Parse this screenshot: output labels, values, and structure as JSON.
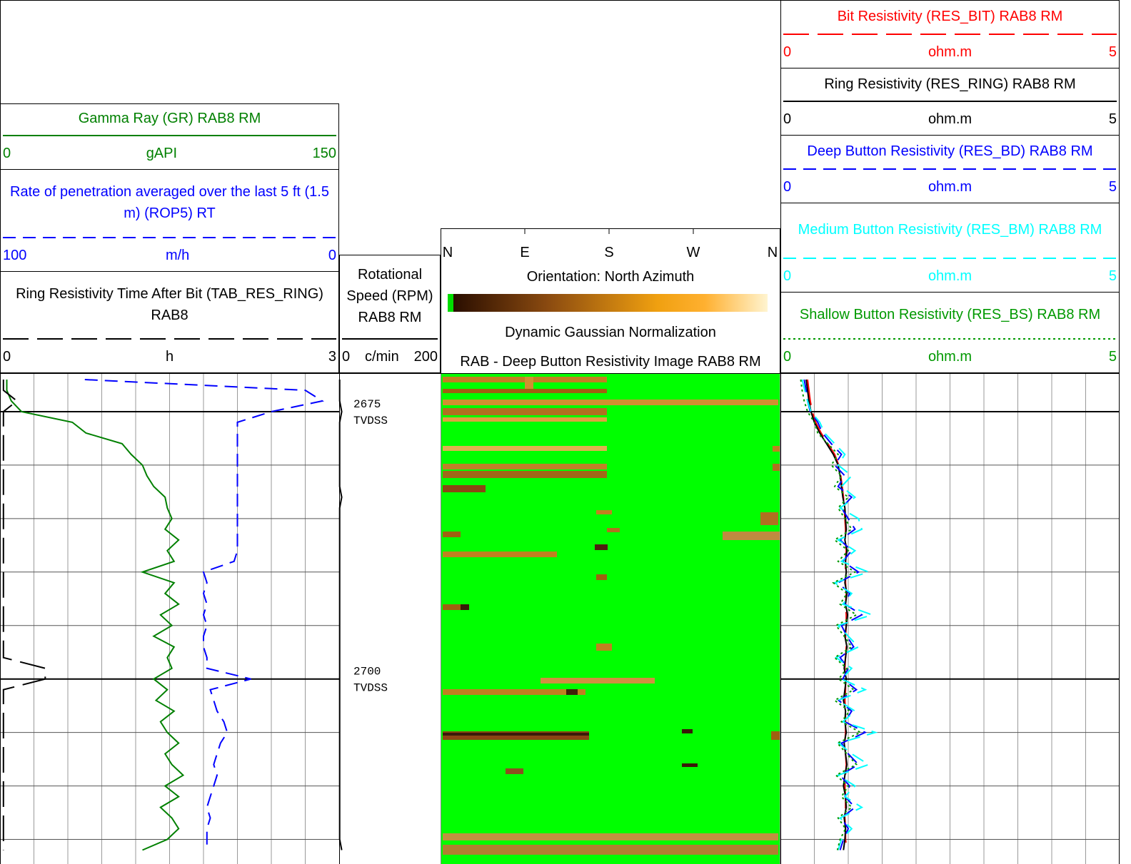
{
  "chart_data": {
    "type": "well-log",
    "ylim": [
      2671.4,
      2717.3
    ],
    "yticks": [
      2675,
      2680,
      2685,
      2690,
      2695,
      2700,
      2705,
      2710,
      2715
    ],
    "depth_labels": [
      2675,
      2700
    ],
    "depth_unit": "TVDSS",
    "depths": [
      2672,
      2673,
      2674,
      2675,
      2676,
      2677,
      2678,
      2679,
      2680,
      2681,
      2682,
      2683,
      2684,
      2685,
      2686,
      2687,
      2688,
      2689,
      2690,
      2691,
      2692,
      2693,
      2694,
      2695,
      2696,
      2697,
      2698,
      2699,
      2700,
      2701,
      2702,
      2703,
      2704,
      2705,
      2706,
      2707,
      2708,
      2709,
      2710,
      2711,
      2712,
      2713,
      2714,
      2715,
      2716
    ],
    "tracks": [
      {
        "type": "curves",
        "grid": true,
        "curves": [
          {
            "name": "Gamma Ray (GR) RAB8 RM",
            "unit": "gAPI",
            "xlim": [
              0,
              150
            ],
            "color": "#008000",
            "dash": "solid",
            "values": [
              3,
              3,
              5,
              9.5,
              32,
              38,
              54,
              58,
              63,
              65,
              68,
              73,
              74,
              76,
              73,
              79,
              74,
              77,
              63,
              77,
              73,
              79,
              71,
              76,
              68,
              77,
              74,
              76,
              68,
              74,
              69,
              77,
              71,
              74,
              79,
              73,
              76,
              81,
              73,
              79,
              71,
              76,
              79,
              74,
              63
            ]
          },
          {
            "name": "Rate of penetration averaged over the last 5 ft (1.5 m) (ROP5) RT",
            "unit": "m/h",
            "xlim": [
              100,
              0
            ],
            "color": "#0000ff",
            "dash": "dashed",
            "values": [
              75,
              10,
              5,
              20,
              30,
              30,
              30,
              30,
              30,
              30,
              30,
              30,
              30,
              30,
              30,
              30,
              30,
              31,
              40,
              39,
              40,
              39,
              40,
              39,
              40,
              40,
              39,
              39,
              26,
              38,
              37,
              36,
              34,
              33,
              35,
              36,
              37,
              36,
              37,
              38,
              39,
              38,
              39,
              39,
              39
            ]
          },
          {
            "name": "Ring Resistivity Time After Bit (TAB_RES_RING) RAB8",
            "unit": "h",
            "xlim": [
              0,
              3
            ],
            "color": "#000000",
            "dash": "long-dash",
            "values": [
              0.03,
              0.03,
              0.15,
              0.03,
              0.03,
              0.03,
              0.03,
              0.03,
              0.03,
              0.03,
              0.03,
              0.03,
              0.03,
              0.03,
              0.03,
              0.03,
              0.03,
              0.03,
              0.03,
              0.03,
              0.03,
              0.03,
              0.03,
              0.03,
              0.03,
              0.03,
              0.03,
              0.4,
              0.4,
              0.03,
              0.03,
              0.03,
              0.03,
              0.03,
              0.03,
              0.03,
              0.03,
              0.03,
              0.03,
              0.03,
              0.03,
              0.03,
              0.03,
              0.03,
              0.03
            ]
          }
        ]
      },
      {
        "type": "curves",
        "grid": false,
        "curves": [
          {
            "name": "Rotational Speed (RPM) RAB8 RM",
            "unit": "c/min",
            "xlim": [
              0,
              200
            ],
            "color": "#000000",
            "dash": "solid",
            "values": [
              1,
              1,
              1,
              5,
              1,
              1,
              1,
              1,
              1,
              1,
              1,
              5,
              1,
              1,
              1,
              1,
              1,
              1,
              1,
              1,
              1,
              1,
              1,
              1,
              1,
              1,
              1,
              1,
              1,
              1,
              1,
              1,
              1,
              1,
              1,
              1,
              1,
              1,
              1,
              1,
              1,
              1,
              1,
              1,
              5
            ]
          }
        ]
      },
      {
        "type": "image",
        "orientation": [
          "N",
          "E",
          "S",
          "W",
          "N"
        ],
        "title": "Orientation: North Azimuth",
        "normalization": "Dynamic Gaussian Normalization",
        "name": "RAB - Deep Button Resistivity Image RAB8 RM"
      },
      {
        "type": "curves",
        "grid": true,
        "curves": [
          {
            "name": "Bit Resistivity (RES_BIT) RAB8 RM",
            "unit": "ohm.m",
            "xlim": [
              0,
              5
            ],
            "color": "#ff0000",
            "dash": "long-dash",
            "values": [
              0.4,
              0.42,
              0.44,
              0.47,
              0.52,
              0.6,
              0.7,
              0.8,
              0.86,
              0.89,
              0.91,
              0.93,
              0.94,
              0.95,
              0.96,
              0.96,
              0.97,
              0.96,
              0.96,
              0.96,
              0.97,
              0.96,
              0.97,
              0.97,
              0.96,
              0.97,
              0.96,
              0.95,
              0.96,
              0.96,
              0.95,
              0.96,
              0.96,
              0.96,
              0.95,
              0.96,
              0.97,
              0.96,
              0.95,
              0.96,
              0.96,
              0.95,
              0.96,
              0.96,
              0.98
            ]
          },
          {
            "name": "Ring Resistivity (RES_RING) RAB8 RM",
            "unit": "ohm.m",
            "xlim": [
              0,
              5
            ],
            "color": "#000000",
            "dash": "solid",
            "values": [
              0.38,
              0.4,
              0.42,
              0.45,
              0.5,
              0.58,
              0.68,
              0.78,
              0.85,
              0.88,
              0.9,
              0.92,
              0.95,
              0.96,
              0.97,
              0.95,
              0.98,
              0.96,
              0.97,
              0.95,
              0.98,
              0.96,
              0.99,
              0.97,
              0.95,
              0.98,
              0.96,
              0.94,
              0.97,
              0.95,
              0.93,
              0.96,
              0.95,
              0.97,
              0.94,
              0.96,
              0.98,
              0.95,
              0.93,
              0.96,
              0.97,
              0.94,
              0.96,
              0.95,
              0.93
            ]
          },
          {
            "name": "Deep Button Resistivity (RES_BD) RAB8 RM",
            "unit": "ohm.m",
            "xlim": [
              0,
              5
            ],
            "color": "#0000ff",
            "dash": "dashed",
            "values": [
              0.35,
              0.38,
              0.4,
              0.44,
              0.55,
              0.62,
              0.75,
              0.9,
              0.8,
              0.95,
              0.85,
              1.05,
              0.9,
              1.0,
              1.1,
              0.88,
              1.05,
              0.92,
              1.15,
              0.85,
              1.02,
              0.95,
              1.2,
              0.9,
              0.98,
              1.08,
              0.88,
              1.0,
              0.92,
              1.12,
              0.86,
              1.05,
              0.95,
              1.25,
              0.9,
              1.0,
              1.15,
              0.88,
              1.02,
              0.95,
              1.1,
              0.9,
              1.0,
              0.93,
              0.88
            ]
          },
          {
            "name": "Medium Button Resistivity (RES_BM) RAB8 RM",
            "unit": "ohm.m",
            "xlim": [
              0,
              5
            ],
            "color": "#00ffff",
            "dash": "dashed",
            "values": [
              0.32,
              0.36,
              0.4,
              0.45,
              0.58,
              0.65,
              0.8,
              0.95,
              0.85,
              1.05,
              0.9,
              1.1,
              0.88,
              1.15,
              1.2,
              0.85,
              1.1,
              0.9,
              1.3,
              0.8,
              1.05,
              0.92,
              1.35,
              0.85,
              1.0,
              1.15,
              0.82,
              1.05,
              0.9,
              1.25,
              0.85,
              1.1,
              0.92,
              1.4,
              0.86,
              1.05,
              1.3,
              0.85,
              1.1,
              0.95,
              1.2,
              0.88,
              1.05,
              0.9,
              0.85
            ]
          },
          {
            "name": "Shallow Button Resistivity (RES_BS) RAB8 RM",
            "unit": "ohm.m",
            "xlim": [
              0,
              5
            ],
            "color": "#009900",
            "dash": "dotted",
            "values": [
              0.3,
              0.32,
              0.35,
              0.4,
              0.5,
              0.55,
              0.7,
              0.85,
              0.75,
              0.9,
              0.8,
              1.0,
              0.85,
              0.95,
              1.05,
              0.8,
              1.0,
              0.85,
              1.1,
              0.78,
              0.98,
              0.88,
              1.12,
              0.82,
              0.94,
              1.05,
              0.8,
              0.98,
              0.86,
              1.08,
              0.8,
              1.02,
              0.9,
              1.18,
              0.84,
              0.98,
              1.12,
              0.82,
              1.0,
              0.9,
              1.05,
              0.85,
              0.96,
              0.88,
              0.84
            ]
          }
        ]
      }
    ]
  }
}
